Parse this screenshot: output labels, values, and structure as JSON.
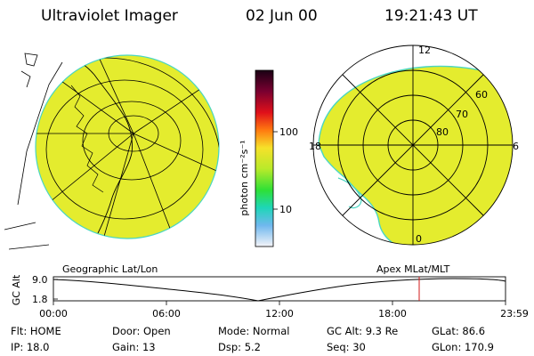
{
  "header": {
    "instrument": "Ultraviolet Imager",
    "date": "02 Jun 00",
    "time": "19:21:43 UT"
  },
  "colors": {
    "emission": "#e4ec2e",
    "edge": "#4ad6c2",
    "outline": "#000000"
  },
  "colorbar": {
    "unit_label": "photon cm⁻²s⁻¹",
    "tick_labels": [
      "100",
      "10"
    ],
    "scale": "log"
  },
  "panels": {
    "left_label": "Geographic Lat/Lon",
    "right_label": "Apex MLat/MLT"
  },
  "polar_plot": {
    "mlt_labels": {
      "top": "12",
      "left": "18",
      "right": "6",
      "bottom": "0"
    },
    "lat_labels": [
      "60",
      "70",
      "80"
    ]
  },
  "altitude_plot": {
    "ylabel": "GC Alt",
    "y_ticks": [
      "9.0",
      "1.8"
    ],
    "x_ticks": [
      "00:00",
      "06:00",
      "12:00",
      "18:00",
      "23:59"
    ]
  },
  "status": {
    "row1": [
      {
        "label": "Flt:",
        "value": "HOME"
      },
      {
        "label": "Door:",
        "value": "Open"
      },
      {
        "label": "Mode:",
        "value": "Normal"
      },
      {
        "label": "GC Alt:",
        "value": "9.3 Re"
      },
      {
        "label": "GLat:",
        "value": "86.6"
      }
    ],
    "row2": [
      {
        "label": "IP:",
        "value": "18.0"
      },
      {
        "label": "Gain:",
        "value": "13"
      },
      {
        "label": "Dsp:",
        "value": "5.2"
      },
      {
        "label": "Seq:",
        "value": "30"
      },
      {
        "label": "GLon:",
        "value": "170.9"
      }
    ]
  }
}
